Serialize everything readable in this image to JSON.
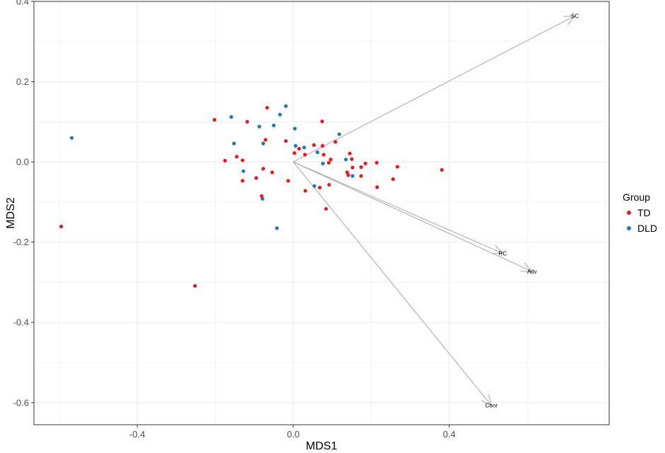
{
  "chart_data": {
    "type": "scatter",
    "xlabel": "MDS1",
    "ylabel": "MDS2",
    "xlim": [
      -0.665,
      0.81
    ],
    "ylim": [
      -0.655,
      0.4
    ],
    "x_ticks": [
      -0.4,
      0.0,
      0.4
    ],
    "x_tick_labels": [
      "-0.4",
      "0.0",
      "0.4"
    ],
    "y_ticks": [
      0.4,
      0.2,
      0.0,
      -0.2,
      -0.4,
      -0.6
    ],
    "y_tick_labels": [
      "0.4",
      "0.2",
      "0.0",
      "-0.2",
      "-0.4",
      "-0.6"
    ],
    "grid": true,
    "legend": {
      "title": "Group",
      "position": "right",
      "entries": [
        {
          "label": "TD",
          "color": "#e41a1c"
        },
        {
          "label": "DLD",
          "color": "#1f78b4"
        }
      ]
    },
    "series": [
      {
        "name": "TD",
        "color": "#e41a1c",
        "points": [
          [
            -0.595,
            -0.161
          ],
          [
            -0.252,
            -0.309
          ],
          [
            -0.202,
            0.105
          ],
          [
            -0.175,
            0.003
          ],
          [
            -0.145,
            0.013
          ],
          [
            -0.118,
            0.1
          ],
          [
            -0.13,
            0.004
          ],
          [
            -0.13,
            -0.047
          ],
          [
            -0.095,
            -0.04
          ],
          [
            -0.081,
            -0.085
          ],
          [
            -0.077,
            -0.017
          ],
          [
            -0.071,
            0.055
          ],
          [
            -0.067,
            0.135
          ],
          [
            -0.054,
            -0.026
          ],
          [
            -0.019,
            0.052
          ],
          [
            -0.013,
            -0.047
          ],
          [
            0.003,
            0.022
          ],
          [
            0.015,
            0.033
          ],
          [
            0.03,
            0.018
          ],
          [
            0.031,
            -0.072
          ],
          [
            0.053,
            0.042
          ],
          [
            0.068,
            -0.064
          ],
          [
            0.074,
            0.101
          ],
          [
            0.075,
            0.04
          ],
          [
            0.078,
            0.018
          ],
          [
            0.084,
            -0.117
          ],
          [
            0.091,
            -0.002
          ],
          [
            0.092,
            -0.057
          ],
          [
            0.096,
            0.006
          ],
          [
            0.108,
            0.05
          ],
          [
            0.138,
            -0.026
          ],
          [
            0.141,
            -0.033
          ],
          [
            0.145,
            0.021
          ],
          [
            0.15,
            0.007
          ],
          [
            0.152,
            -0.014
          ],
          [
            0.174,
            -0.035
          ],
          [
            0.174,
            -0.013
          ],
          [
            0.185,
            -0.004
          ],
          [
            0.214,
            -0.002
          ],
          [
            0.215,
            -0.063
          ],
          [
            0.256,
            -0.043
          ],
          [
            0.267,
            -0.012
          ],
          [
            0.381,
            -0.02
          ]
        ]
      },
      {
        "name": "DLD",
        "color": "#1f78b4",
        "points": [
          [
            -0.568,
            0.06
          ],
          [
            -0.159,
            0.112
          ],
          [
            -0.152,
            0.046
          ],
          [
            -0.128,
            -0.023
          ],
          [
            -0.087,
            0.088
          ],
          [
            -0.077,
            0.046
          ],
          [
            -0.079,
            -0.092
          ],
          [
            -0.05,
            0.091
          ],
          [
            -0.042,
            -0.165
          ],
          [
            -0.034,
            0.118
          ],
          [
            -0.019,
            0.139
          ],
          [
            0.004,
            0.083
          ],
          [
            0.006,
            0.04
          ],
          [
            0.028,
            0.036
          ],
          [
            0.054,
            -0.06
          ],
          [
            0.062,
            0.024
          ],
          [
            0.076,
            -0.004
          ],
          [
            0.118,
            0.069
          ],
          [
            0.135,
            0.006
          ],
          [
            0.152,
            -0.035
          ]
        ]
      }
    ],
    "vectors": [
      {
        "label": "SC",
        "x": 0.722,
        "y": 0.364
      },
      {
        "label": "RC",
        "x": 0.537,
        "y": -0.228
      },
      {
        "label": "Adv",
        "x": 0.612,
        "y": -0.273
      },
      {
        "label": "Coor",
        "x": 0.508,
        "y": -0.607
      }
    ],
    "point_color_default": "#e41a1c",
    "vector_color": "#a6a6a6"
  }
}
